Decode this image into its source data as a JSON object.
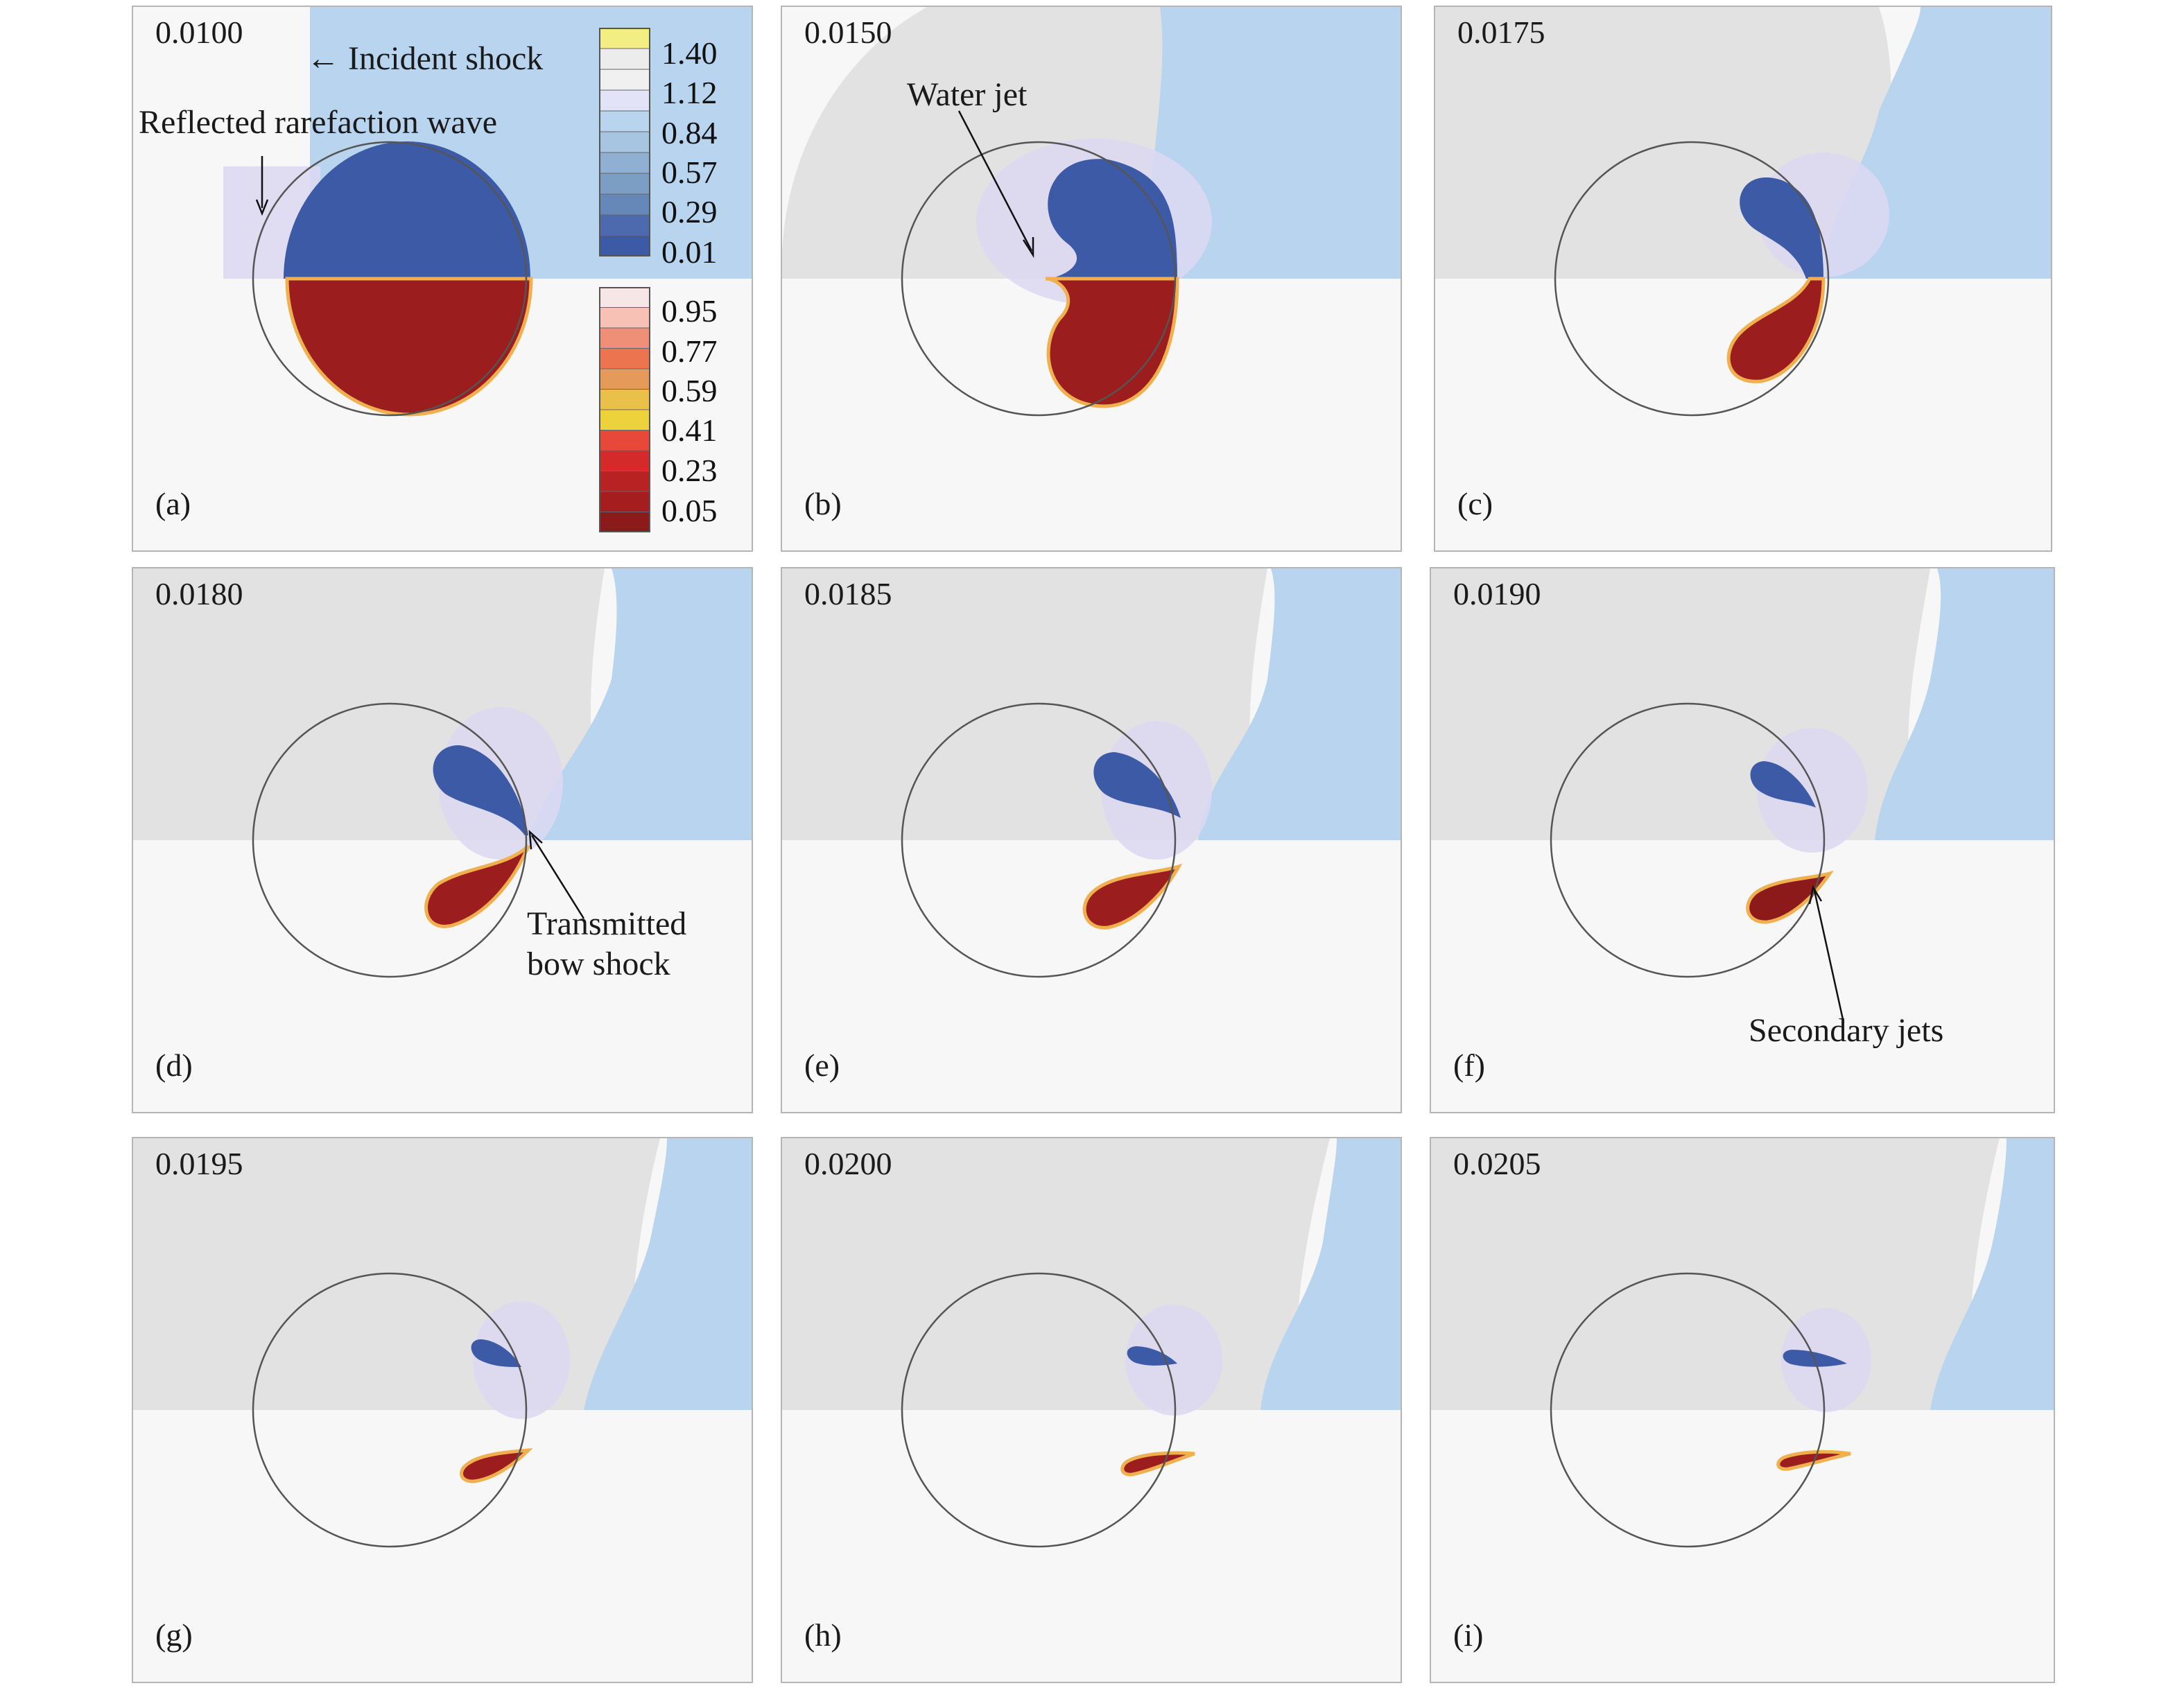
{
  "figure": {
    "panels": [
      {
        "time": "0.0100",
        "label": "(a)"
      },
      {
        "time": "0.0150",
        "label": "(b)"
      },
      {
        "time": "0.0175",
        "label": "(c)"
      },
      {
        "time": "0.0180",
        "label": "(d)"
      },
      {
        "time": "0.0185",
        "label": "(e)"
      },
      {
        "time": "0.0190",
        "label": "(f)"
      },
      {
        "time": "0.0195",
        "label": "(g)"
      },
      {
        "time": "0.0200",
        "label": "(h)"
      },
      {
        "time": "0.0205",
        "label": "(i)"
      }
    ],
    "annotations": {
      "incident_shock": "← Incident shock",
      "reflected_rarefaction": "Reflected rarefaction wave",
      "water_jet": "Water jet",
      "transmitted_line1": "Transmitted",
      "transmitted_line2": "bow shock",
      "secondary_jets": "Secondary jets"
    },
    "pressure_colorbar": {
      "ticks": [
        "1.40",
        "1.12",
        "0.84",
        "0.57",
        "0.29",
        "0.01"
      ],
      "colors": [
        "#f2ee84",
        "#ececec",
        "#f0f0f0",
        "#e3e3f7",
        "#b8d4ee",
        "#a7c4e0",
        "#8fb0d2",
        "#7c9ec4",
        "#6688b8",
        "#4d6aae",
        "#3d5aa6"
      ]
    },
    "density_colorbar": {
      "ticks": [
        "0.95",
        "0.77",
        "0.59",
        "0.41",
        "0.23",
        "0.05"
      ],
      "colors": [
        "#f6e6e6",
        "#f7c1b5",
        "#f08f78",
        "#ec7550",
        "#e59a5a",
        "#e8c04a",
        "#edd23c",
        "#e8483a",
        "#d42a2a",
        "#b82222",
        "#a51d1d",
        "#8c1a1a"
      ]
    },
    "colors": {
      "gas_gray": "#e2e2e2",
      "post_shock_blue": "#b8d4ee",
      "water_blue": "#3d5aa6",
      "water_red": "#9b1d1d",
      "halo": "#dcd8f2",
      "background": "#f7f7f7"
    }
  }
}
